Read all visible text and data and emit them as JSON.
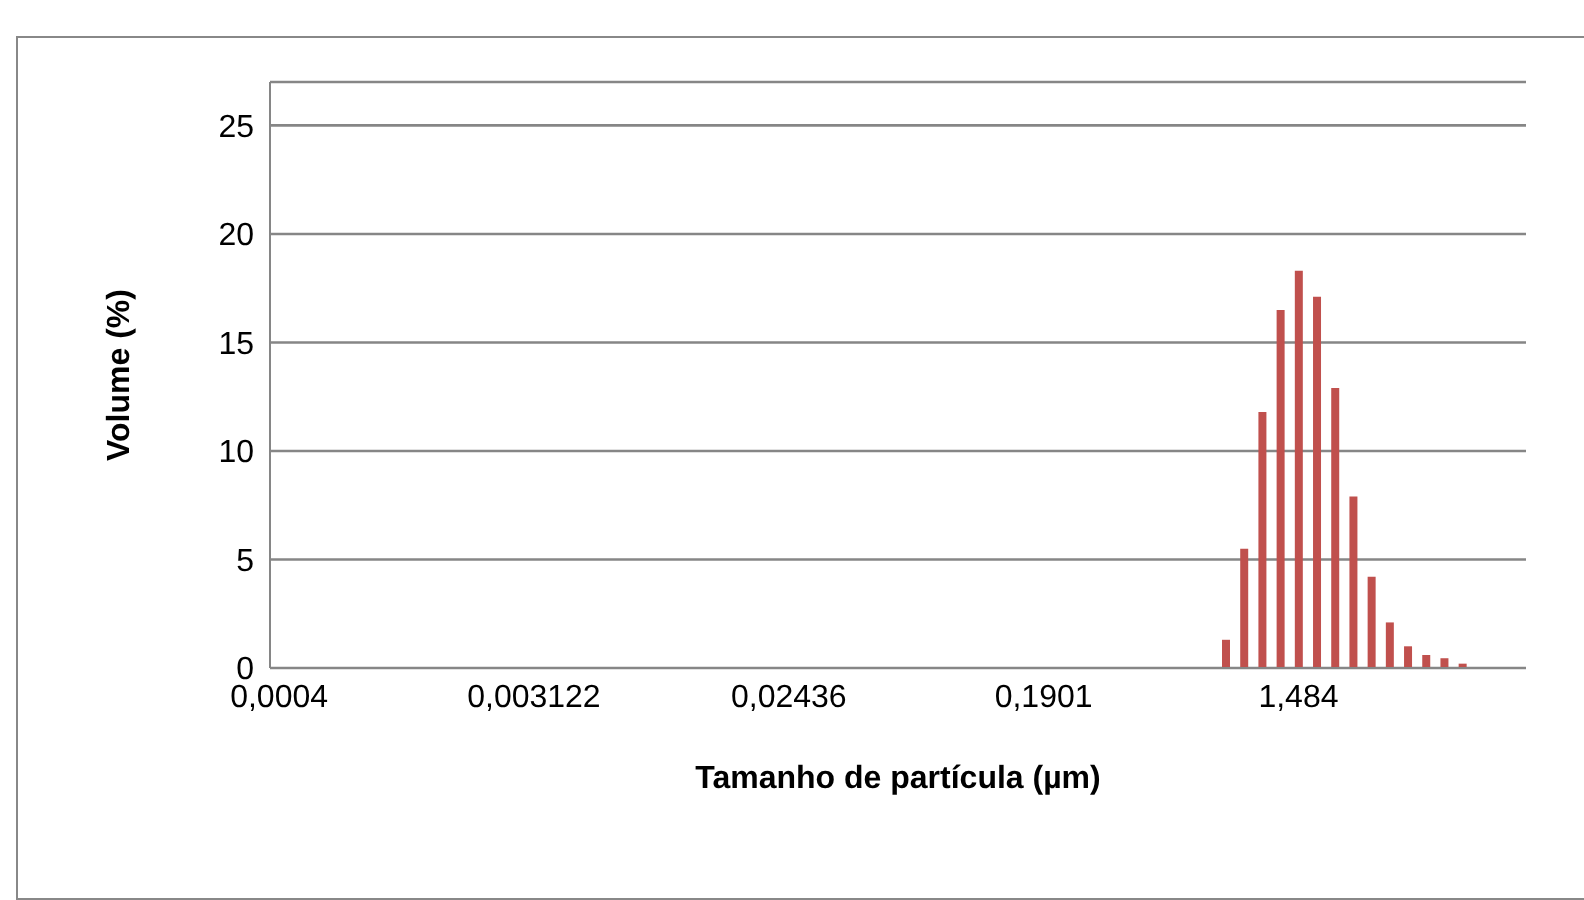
{
  "chart_data": {
    "type": "bar",
    "xlabel": "Tamanho de partícula (µm)",
    "ylabel": "Volume (%)",
    "categories": [
      "0,0004",
      null,
      null,
      null,
      null,
      null,
      null,
      null,
      null,
      null,
      null,
      null,
      null,
      null,
      "0,003122",
      null,
      null,
      null,
      null,
      null,
      null,
      null,
      null,
      null,
      null,
      null,
      null,
      null,
      "0,02436",
      null,
      null,
      null,
      null,
      null,
      null,
      null,
      null,
      null,
      null,
      null,
      null,
      null,
      "0,1901",
      null,
      null,
      null,
      null,
      null,
      null,
      null,
      null,
      null,
      null,
      null,
      null,
      null,
      "1,484",
      null,
      null,
      null,
      null,
      null,
      null,
      null,
      null,
      null,
      null,
      null,
      null
    ],
    "values": [
      0,
      0,
      0,
      0,
      0,
      0,
      0,
      0,
      0,
      0,
      0,
      0,
      0,
      0,
      0,
      0,
      0,
      0,
      0,
      0,
      0,
      0,
      0,
      0,
      0,
      0,
      0,
      0,
      0,
      0,
      0,
      0,
      0,
      0,
      0,
      0,
      0,
      0,
      0,
      0,
      0,
      0,
      0,
      0,
      0,
      0,
      0,
      0,
      0,
      0,
      0,
      0,
      1.3,
      5.5,
      11.8,
      16.5,
      18.3,
      17.1,
      12.9,
      7.9,
      4.2,
      2.1,
      1.0,
      0.6,
      0.45,
      0.2,
      0,
      0,
      0
    ],
    "color": "#c0504d",
    "ylim": [
      0,
      27
    ],
    "yticks": [
      0,
      5,
      10,
      15,
      20,
      25
    ],
    "grid": "y"
  }
}
